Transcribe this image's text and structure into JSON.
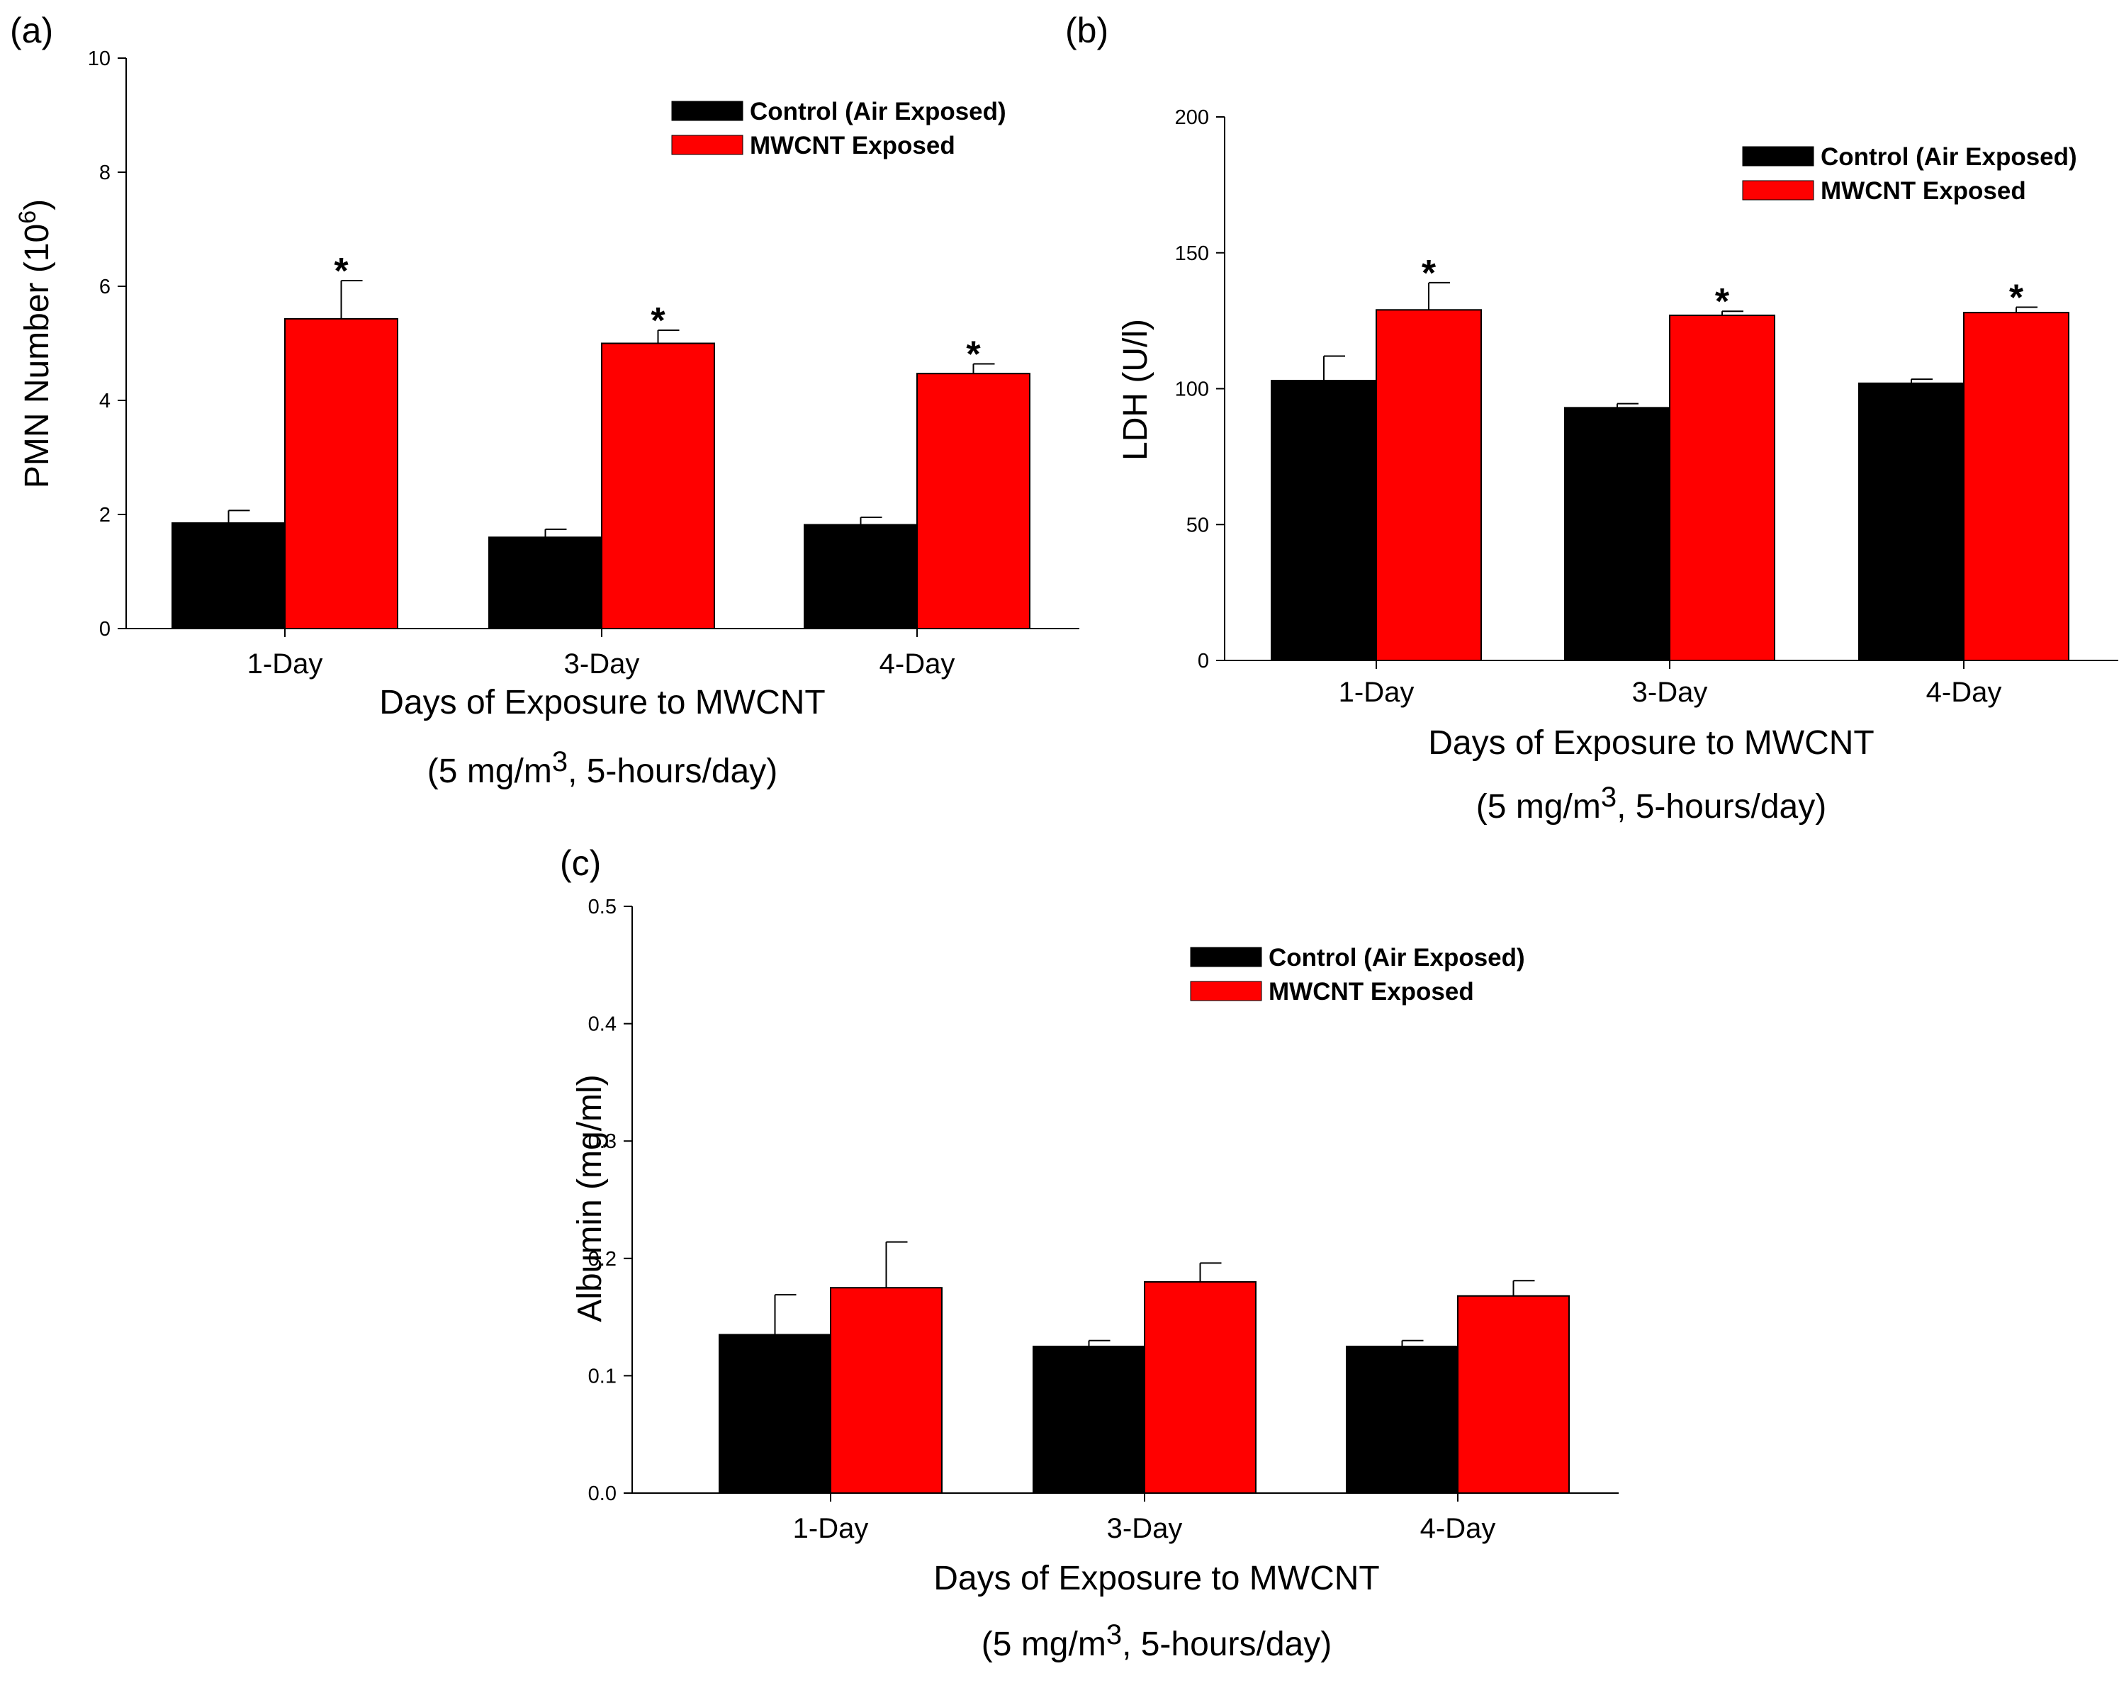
{
  "colors": {
    "control": "#000000",
    "mwcnt": "#ff0000",
    "axis": "#000000"
  },
  "chart_data": [
    {
      "panel": "(a)",
      "type": "bar",
      "categories": [
        "1-Day",
        "3-Day",
        "4-Day"
      ],
      "series": [
        {
          "name": "Control (Air Exposed)",
          "values": [
            1.85,
            1.6,
            1.82
          ],
          "errors": [
            0.22,
            0.14,
            0.13
          ]
        },
        {
          "name": "MWCNT Exposed",
          "values": [
            5.43,
            5.0,
            4.47
          ],
          "errors": [
            0.67,
            0.23,
            0.17
          ]
        }
      ],
      "significance": [
        "*",
        "*",
        "*"
      ],
      "ylim": [
        0,
        10
      ],
      "yticks": [
        "0",
        "2",
        "4",
        "6",
        "8",
        "10"
      ],
      "ylabel_main": "PMN Number (10",
      "ylabel_sup": "6",
      "ylabel_end": ")",
      "xlabel": "Days of Exposure to MWCNT",
      "subtitle_pre": "(5 mg/m",
      "subtitle_sup": "3",
      "subtitle_post": ", 5-hours/day)",
      "legend": "top-right",
      "grid": false
    },
    {
      "panel": "(b)",
      "type": "bar",
      "categories": [
        "1-Day",
        "3-Day",
        "4-Day"
      ],
      "series": [
        {
          "name": "Control (Air Exposed)",
          "values": [
            103,
            93,
            102
          ],
          "errors": [
            9,
            1.5,
            1.5
          ]
        },
        {
          "name": "MWCNT Exposed",
          "values": [
            129,
            127,
            128
          ],
          "errors": [
            10,
            1.5,
            2
          ]
        }
      ],
      "significance": [
        "*",
        "*",
        "*"
      ],
      "ylim": [
        0,
        200
      ],
      "yticks": [
        "0",
        "50",
        "100",
        "150",
        "200"
      ],
      "ylabel_main": "LDH (U/l)",
      "xlabel": "Days of Exposure to MWCNT",
      "subtitle_pre": "(5 mg/m",
      "subtitle_sup": "3",
      "subtitle_post": ", 5-hours/day)",
      "legend": "top-right",
      "grid": false
    },
    {
      "panel": "(c)",
      "type": "bar",
      "categories": [
        "1-Day",
        "3-Day",
        "4-Day"
      ],
      "series": [
        {
          "name": "Control (Air Exposed)",
          "values": [
            0.135,
            0.125,
            0.125
          ],
          "errors": [
            0.034,
            0.005,
            0.005
          ]
        },
        {
          "name": "MWCNT Exposed",
          "values": [
            0.175,
            0.18,
            0.168
          ],
          "errors": [
            0.039,
            0.016,
            0.013
          ]
        }
      ],
      "significance": [
        "",
        "",
        ""
      ],
      "ylim": [
        0,
        0.5
      ],
      "yticks": [
        "0.0",
        "0.1",
        "0.2",
        "0.3",
        "0.4",
        "0.5"
      ],
      "ylabel_main": "Albumin (mg/ml)",
      "xlabel": "Days of Exposure to MWCNT",
      "subtitle_pre": "(5 mg/m",
      "subtitle_sup": "3",
      "subtitle_post": ", 5-hours/day)",
      "legend": "top-right",
      "grid": false
    }
  ]
}
